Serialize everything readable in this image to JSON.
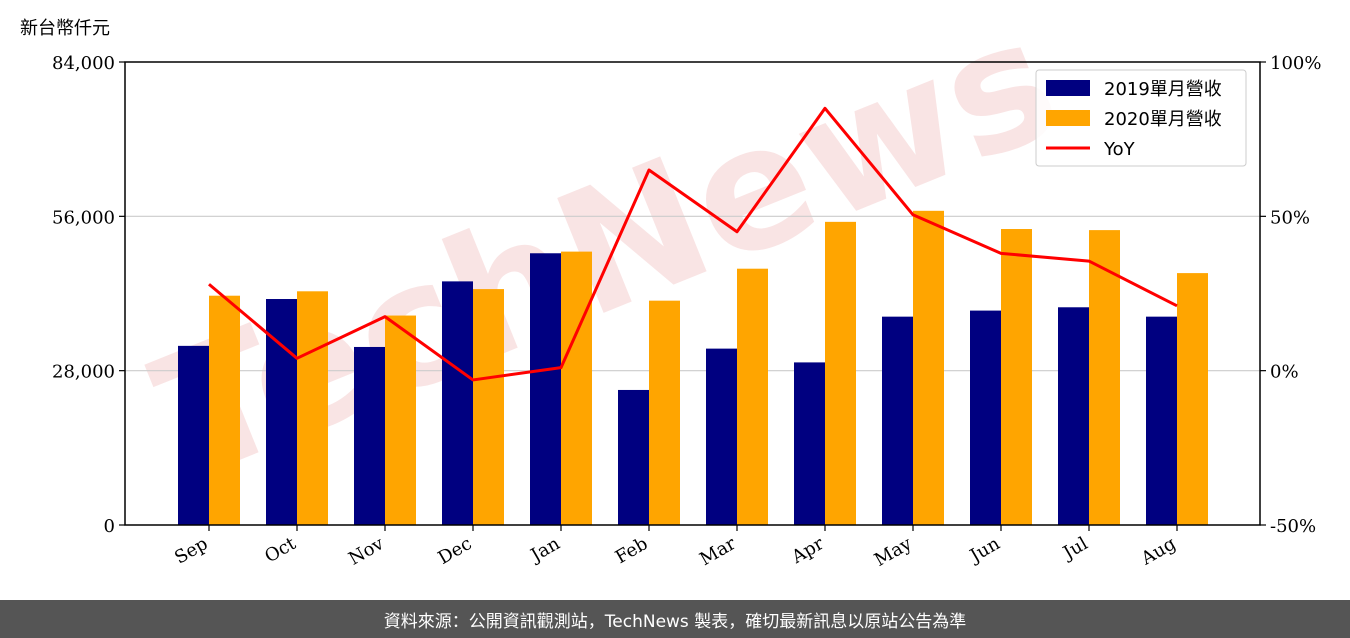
{
  "chart_data": {
    "type": "bar",
    "unit_label": "新台幣仟元",
    "categories": [
      "Sep",
      "Oct",
      "Nov",
      "Dec",
      "Jan",
      "Feb",
      "Mar",
      "Apr",
      "May",
      "Jun",
      "Jul",
      "Aug"
    ],
    "series": [
      {
        "name": "2019單月營收",
        "type": "bar",
        "axis": "left",
        "color": "#000080",
        "values": [
          32500,
          41000,
          32300,
          44200,
          49300,
          24500,
          32000,
          29500,
          37800,
          38900,
          39500,
          37800
        ]
      },
      {
        "name": "2020單月營收",
        "type": "bar",
        "axis": "left",
        "color": "#ffa500",
        "values": [
          41600,
          42400,
          38000,
          42800,
          49600,
          40700,
          46500,
          55000,
          57000,
          53700,
          53500,
          45700
        ]
      },
      {
        "name": "YoY",
        "type": "line",
        "axis": "right",
        "color": "#ff0000",
        "values": [
          28,
          4,
          17.5,
          -3,
          1,
          65,
          45,
          85,
          50.5,
          38,
          35.5,
          21
        ]
      }
    ],
    "y_left": {
      "min": 0,
      "max": 84000,
      "ticks": [
        "0",
        "28,000",
        "56,000",
        "84,000"
      ],
      "tick_values": [
        0,
        28000,
        56000,
        84000
      ]
    },
    "y_right": {
      "min": -50,
      "max": 100,
      "ticks": [
        "-50%",
        "0%",
        "50%",
        "100%"
      ],
      "tick_values": [
        -50,
        0,
        50,
        100
      ]
    },
    "grid": "horizontal",
    "legend_position": "top-right"
  },
  "watermark": "TechNews",
  "footer": {
    "text": "資料來源：公開資訊觀測站，TechNews 製表，確切最新訊息以原站公告為準"
  }
}
